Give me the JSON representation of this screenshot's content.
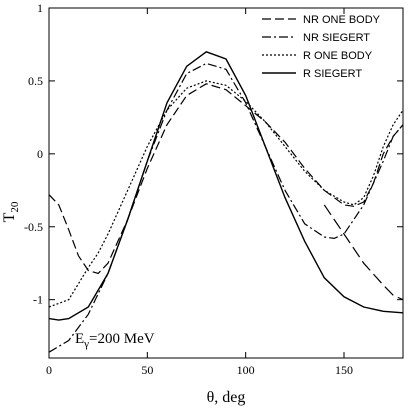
{
  "chart_data": {
    "type": "line",
    "xlabel": "θ, deg",
    "ylabel_main": "T",
    "ylabel_sub": "20",
    "xlim": [
      0,
      180
    ],
    "ylim": [
      -1.4,
      1.0
    ],
    "xticks": [
      0,
      50,
      100,
      150
    ],
    "yticks": [
      1,
      0.5,
      0,
      -0.5,
      -1
    ],
    "grid": false,
    "legend_position": "top-right",
    "annotation": {
      "main": "E",
      "sub": "γ",
      "rest": "=200 MeV"
    },
    "series": [
      {
        "name": "NR ONE BODY",
        "style": "dashed",
        "points": [
          [
            0,
            -0.28
          ],
          [
            5,
            -0.35
          ],
          [
            10,
            -0.52
          ],
          [
            15,
            -0.7
          ],
          [
            20,
            -0.8
          ],
          [
            25,
            -0.82
          ],
          [
            30,
            -0.75
          ],
          [
            40,
            -0.45
          ],
          [
            50,
            -0.1
          ],
          [
            60,
            0.2
          ],
          [
            70,
            0.4
          ],
          [
            80,
            0.48
          ],
          [
            90,
            0.44
          ],
          [
            100,
            0.33
          ],
          [
            110,
            0.22
          ],
          [
            120,
            0.08
          ],
          [
            130,
            -0.1
          ],
          [
            140,
            -0.25
          ],
          [
            150,
            -0.35
          ],
          [
            155,
            -0.36
          ],
          [
            160,
            -0.33
          ],
          [
            165,
            -0.2
          ],
          [
            170,
            0.0
          ],
          [
            175,
            0.12
          ],
          [
            180,
            0.2
          ]
        ]
      },
      {
        "name": "NR SIEGERT",
        "style": "dashdot",
        "points": [
          [
            0,
            -1.36
          ],
          [
            10,
            -1.28
          ],
          [
            20,
            -1.1
          ],
          [
            30,
            -0.82
          ],
          [
            40,
            -0.45
          ],
          [
            50,
            -0.05
          ],
          [
            60,
            0.3
          ],
          [
            70,
            0.55
          ],
          [
            80,
            0.62
          ],
          [
            90,
            0.58
          ],
          [
            100,
            0.35
          ],
          [
            110,
            0.05
          ],
          [
            120,
            -0.25
          ],
          [
            130,
            -0.48
          ],
          [
            140,
            -0.57
          ],
          [
            145,
            -0.58
          ],
          [
            150,
            -0.55
          ],
          [
            160,
            -0.35
          ],
          [
            170,
            -0.05
          ],
          [
            175,
            0.12
          ],
          [
            180,
            0.2
          ]
        ]
      },
      {
        "name": "R ONE BODY",
        "style": "dotted",
        "points": [
          [
            0,
            -1.05
          ],
          [
            10,
            -1.0
          ],
          [
            20,
            -0.78
          ],
          [
            25,
            -0.68
          ],
          [
            30,
            -0.55
          ],
          [
            40,
            -0.25
          ],
          [
            50,
            0.05
          ],
          [
            60,
            0.3
          ],
          [
            70,
            0.45
          ],
          [
            80,
            0.5
          ],
          [
            90,
            0.47
          ],
          [
            100,
            0.36
          ],
          [
            110,
            0.22
          ],
          [
            120,
            0.05
          ],
          [
            130,
            -0.12
          ],
          [
            140,
            -0.25
          ],
          [
            150,
            -0.33
          ],
          [
            155,
            -0.35
          ],
          [
            160,
            -0.3
          ],
          [
            165,
            -0.15
          ],
          [
            170,
            0.05
          ],
          [
            175,
            0.2
          ],
          [
            180,
            0.3
          ]
        ]
      },
      {
        "name": "R SIEGERT",
        "style": "solid",
        "points": [
          [
            0,
            -1.13
          ],
          [
            5,
            -1.14
          ],
          [
            10,
            -1.13
          ],
          [
            20,
            -1.05
          ],
          [
            30,
            -0.82
          ],
          [
            40,
            -0.45
          ],
          [
            50,
            -0.05
          ],
          [
            60,
            0.35
          ],
          [
            70,
            0.6
          ],
          [
            80,
            0.7
          ],
          [
            90,
            0.65
          ],
          [
            100,
            0.4
          ],
          [
            110,
            0.05
          ],
          [
            120,
            -0.3
          ],
          [
            130,
            -0.6
          ],
          [
            140,
            -0.85
          ],
          [
            150,
            -0.98
          ],
          [
            160,
            -1.05
          ],
          [
            170,
            -1.08
          ],
          [
            180,
            -1.09
          ]
        ]
      },
      {
        "name": "",
        "style": "longdash",
        "points": [
          [
            140,
            -0.35
          ],
          [
            150,
            -0.55
          ],
          [
            160,
            -0.75
          ],
          [
            170,
            -0.9
          ],
          [
            175,
            -0.97
          ],
          [
            180,
            -1.0
          ]
        ]
      }
    ]
  }
}
